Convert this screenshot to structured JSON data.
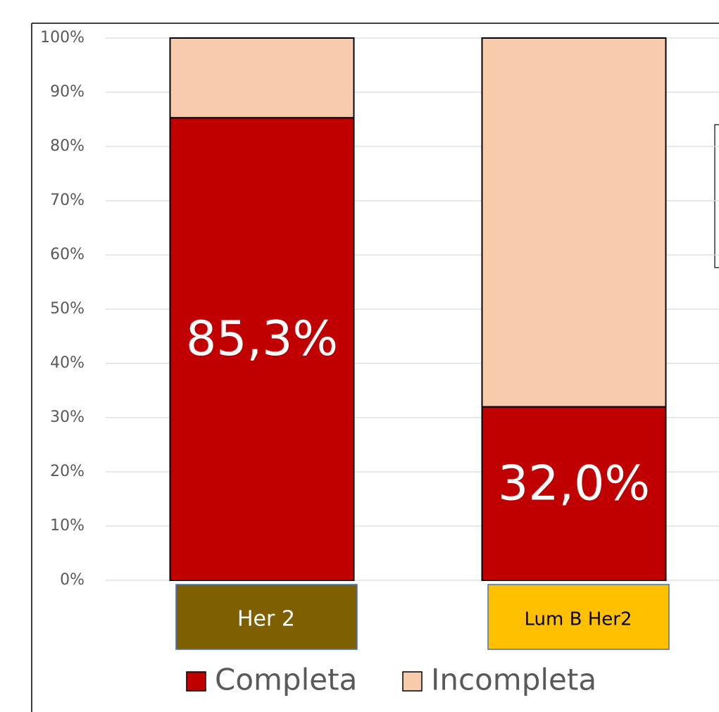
{
  "chart_data": {
    "type": "stacked_bar",
    "categories": [
      "Her 2",
      "Lum B Her2"
    ],
    "category_colors": [
      "#7f6000",
      "#ffc000"
    ],
    "category_text_colors": [
      "#ffffff",
      "#000000"
    ],
    "series": [
      {
        "name": "Completa",
        "color": "#c00000",
        "values": [
          85.3,
          32.0
        ],
        "value_labels": [
          "85,3%",
          "32,0%"
        ]
      },
      {
        "name": "Incompleta",
        "color": "#f8cbad",
        "values": [
          14.7,
          68.0
        ]
      }
    ],
    "ylim": [
      0,
      100
    ],
    "yticks": [
      {
        "value": 0,
        "label": "0%"
      },
      {
        "value": 10,
        "label": "10%"
      },
      {
        "value": 20,
        "label": "20%"
      },
      {
        "value": 30,
        "label": "30%"
      },
      {
        "value": 40,
        "label": "40%"
      },
      {
        "value": 50,
        "label": "50%"
      },
      {
        "value": 60,
        "label": "60%"
      },
      {
        "value": 70,
        "label": "70%"
      },
      {
        "value": 80,
        "label": "80%"
      },
      {
        "value": 90,
        "label": "90%"
      },
      {
        "value": 100,
        "label": "100%"
      }
    ],
    "grid": true,
    "legend": "bottom"
  }
}
